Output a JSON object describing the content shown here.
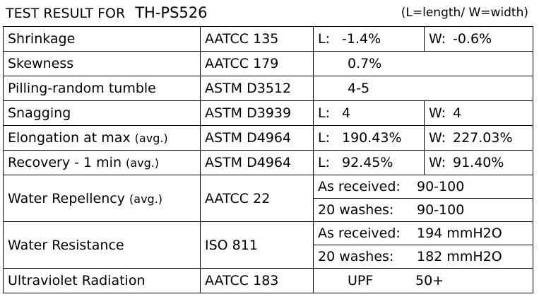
{
  "header": {
    "title": "TEST RESULT FOR",
    "code": "TH-PS526",
    "note": "(L=length/ W=width)"
  },
  "table": {
    "rows": [
      {
        "test": "Shrinkage",
        "method": "AATCC 135",
        "results": [
          {
            "label": "L:",
            "value": "-1.4%"
          },
          {
            "label": "W:",
            "value": "-0.6%"
          }
        ]
      },
      {
        "test": "Skewness",
        "method": "AATCC 179",
        "results": [
          {
            "value": "0.7%"
          }
        ]
      },
      {
        "test": "Pilling-random tumble",
        "method": "ASTM D3512",
        "results": [
          {
            "value": "4-5"
          }
        ]
      },
      {
        "test": "Snagging",
        "method": "ASTM D3939",
        "results": [
          {
            "label": "L:",
            "value": "4"
          },
          {
            "label": "W:",
            "value": "4"
          }
        ]
      },
      {
        "test": "Elongation at max",
        "suffix": "(avg.)",
        "method": "ASTM D4964",
        "results": [
          {
            "label": "L:",
            "value": "190.43%"
          },
          {
            "label": "W:",
            "value": "227.03%"
          }
        ]
      },
      {
        "test": "Recovery - 1 min",
        "suffix": "(avg.)",
        "method": "ASTM D4964",
        "results": [
          {
            "label": "L:",
            "value": "92.45%"
          },
          {
            "label": "W:",
            "value": "91.40%"
          }
        ]
      },
      {
        "test": "Water Repellency",
        "suffix": "(avg.)",
        "method": "AATCC 22",
        "results": [
          {
            "label": "As received:",
            "value": "90-100"
          },
          {
            "label": "20 washes:",
            "value": "90-100"
          }
        ]
      },
      {
        "test": "Water Resistance",
        "method": "ISO 811",
        "results": [
          {
            "label": "As received:",
            "value": "194 mmH2O"
          },
          {
            "label": "20 washes:",
            "value": "182 mmH2O"
          }
        ]
      },
      {
        "test": "Ultraviolet Radiation",
        "method": "AATCC 183",
        "results": [
          {
            "label": "UPF",
            "value": "50+"
          }
        ]
      }
    ]
  }
}
